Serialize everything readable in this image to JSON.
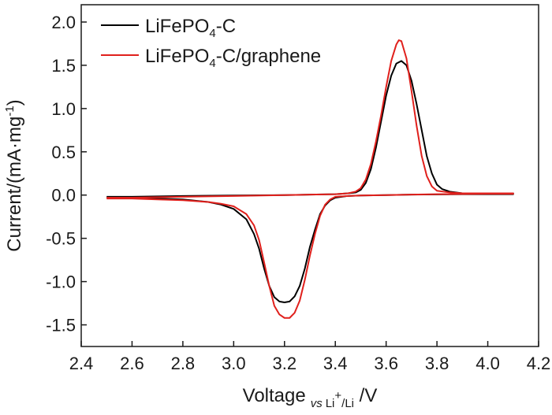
{
  "chart_data": {
    "type": "line",
    "xlabel": {
      "main": "Voltage",
      "sub_vs": "vs",
      "sub_li": "Li",
      "sub_plus": "+",
      "sub_rest": "/Li",
      "unit": " /V"
    },
    "ylabel": {
      "main": "Current/(mA·mg",
      "sup": "-1",
      "close": ")"
    },
    "xlim": [
      2.4,
      4.2
    ],
    "ylim": [
      -1.75,
      2.2
    ],
    "x_ticks": [
      "2.4",
      "2.6",
      "2.8",
      "3.0",
      "3.2",
      "3.4",
      "3.6",
      "3.8",
      "4.0",
      "4.2"
    ],
    "y_ticks": [
      "-1.5",
      "-1.0",
      "-0.5",
      "0.0",
      "0.5",
      "1.0",
      "1.5",
      "2.0"
    ],
    "grid": false,
    "legend_position": "top-left",
    "series": [
      {
        "name": "LiFePO4-C",
        "legend": {
          "prefix": "LiFePO",
          "sub": "4",
          "suffix": "-C"
        },
        "color": "#000000",
        "points": [
          [
            2.5,
            -0.03
          ],
          [
            2.6,
            -0.03
          ],
          [
            2.7,
            -0.04
          ],
          [
            2.8,
            -0.05
          ],
          [
            2.9,
            -0.08
          ],
          [
            2.95,
            -0.11
          ],
          [
            3.0,
            -0.16
          ],
          [
            3.05,
            -0.28
          ],
          [
            3.08,
            -0.45
          ],
          [
            3.1,
            -0.62
          ],
          [
            3.12,
            -0.85
          ],
          [
            3.14,
            -1.05
          ],
          [
            3.16,
            -1.18
          ],
          [
            3.18,
            -1.23
          ],
          [
            3.2,
            -1.24
          ],
          [
            3.22,
            -1.23
          ],
          [
            3.24,
            -1.17
          ],
          [
            3.26,
            -1.05
          ],
          [
            3.28,
            -0.85
          ],
          [
            3.3,
            -0.6
          ],
          [
            3.32,
            -0.4
          ],
          [
            3.34,
            -0.22
          ],
          [
            3.36,
            -0.12
          ],
          [
            3.38,
            -0.06
          ],
          [
            3.4,
            -0.03
          ],
          [
            3.45,
            -0.01
          ],
          [
            3.5,
            -0.005
          ],
          [
            3.6,
            0.0
          ],
          [
            3.7,
            0.005
          ],
          [
            3.8,
            0.008
          ],
          [
            3.9,
            0.01
          ],
          [
            4.0,
            0.01
          ],
          [
            4.1,
            0.01
          ],
          [
            4.1,
            0.02
          ],
          [
            4.0,
            0.02
          ],
          [
            3.9,
            0.02
          ],
          [
            3.85,
            0.04
          ],
          [
            3.82,
            0.07
          ],
          [
            3.8,
            0.12
          ],
          [
            3.78,
            0.25
          ],
          [
            3.76,
            0.45
          ],
          [
            3.74,
            0.75
          ],
          [
            3.72,
            1.05
          ],
          [
            3.7,
            1.32
          ],
          [
            3.68,
            1.5
          ],
          [
            3.66,
            1.55
          ],
          [
            3.64,
            1.52
          ],
          [
            3.62,
            1.38
          ],
          [
            3.6,
            1.15
          ],
          [
            3.58,
            0.85
          ],
          [
            3.56,
            0.55
          ],
          [
            3.54,
            0.3
          ],
          [
            3.52,
            0.14
          ],
          [
            3.5,
            0.06
          ],
          [
            3.48,
            0.03
          ],
          [
            3.45,
            0.02
          ],
          [
            3.4,
            0.01
          ],
          [
            3.3,
            0.005
          ],
          [
            3.2,
            0.0
          ],
          [
            3.0,
            -0.005
          ],
          [
            2.8,
            -0.01
          ],
          [
            2.6,
            -0.02
          ],
          [
            2.5,
            -0.02
          ]
        ]
      },
      {
        "name": "LiFePO4-C/graphene",
        "legend": {
          "prefix": "LiFePO",
          "sub": "4",
          "suffix": "-C/graphene"
        },
        "color": "#e0201c",
        "points": [
          [
            2.5,
            -0.04
          ],
          [
            2.6,
            -0.04
          ],
          [
            2.7,
            -0.05
          ],
          [
            2.8,
            -0.06
          ],
          [
            2.9,
            -0.08
          ],
          [
            2.95,
            -0.1
          ],
          [
            3.0,
            -0.13
          ],
          [
            3.05,
            -0.22
          ],
          [
            3.08,
            -0.35
          ],
          [
            3.1,
            -0.52
          ],
          [
            3.12,
            -0.78
          ],
          [
            3.14,
            -1.05
          ],
          [
            3.16,
            -1.28
          ],
          [
            3.18,
            -1.38
          ],
          [
            3.2,
            -1.42
          ],
          [
            3.22,
            -1.42
          ],
          [
            3.24,
            -1.36
          ],
          [
            3.26,
            -1.22
          ],
          [
            3.28,
            -0.98
          ],
          [
            3.3,
            -0.7
          ],
          [
            3.32,
            -0.45
          ],
          [
            3.34,
            -0.24
          ],
          [
            3.36,
            -0.11
          ],
          [
            3.38,
            -0.05
          ],
          [
            3.4,
            -0.02
          ],
          [
            3.45,
            -0.01
          ],
          [
            3.5,
            -0.005
          ],
          [
            3.6,
            0.0
          ],
          [
            3.7,
            0.005
          ],
          [
            3.8,
            0.01
          ],
          [
            3.9,
            0.012
          ],
          [
            4.0,
            0.015
          ],
          [
            4.1,
            0.015
          ],
          [
            4.1,
            0.02
          ],
          [
            4.0,
            0.02
          ],
          [
            3.9,
            0.02
          ],
          [
            3.85,
            0.03
          ],
          [
            3.8,
            0.05
          ],
          [
            3.78,
            0.1
          ],
          [
            3.76,
            0.22
          ],
          [
            3.74,
            0.45
          ],
          [
            3.72,
            0.8
          ],
          [
            3.7,
            1.2
          ],
          [
            3.68,
            1.58
          ],
          [
            3.66,
            1.78
          ],
          [
            3.65,
            1.79
          ],
          [
            3.64,
            1.74
          ],
          [
            3.62,
            1.55
          ],
          [
            3.6,
            1.25
          ],
          [
            3.58,
            0.92
          ],
          [
            3.56,
            0.62
          ],
          [
            3.54,
            0.36
          ],
          [
            3.52,
            0.18
          ],
          [
            3.5,
            0.08
          ],
          [
            3.48,
            0.04
          ],
          [
            3.45,
            0.02
          ],
          [
            3.4,
            0.01
          ],
          [
            3.3,
            0.005
          ],
          [
            3.2,
            0.0
          ],
          [
            3.0,
            -0.01
          ],
          [
            2.8,
            -0.02
          ],
          [
            2.6,
            -0.03
          ],
          [
            2.5,
            -0.03
          ]
        ]
      }
    ]
  }
}
